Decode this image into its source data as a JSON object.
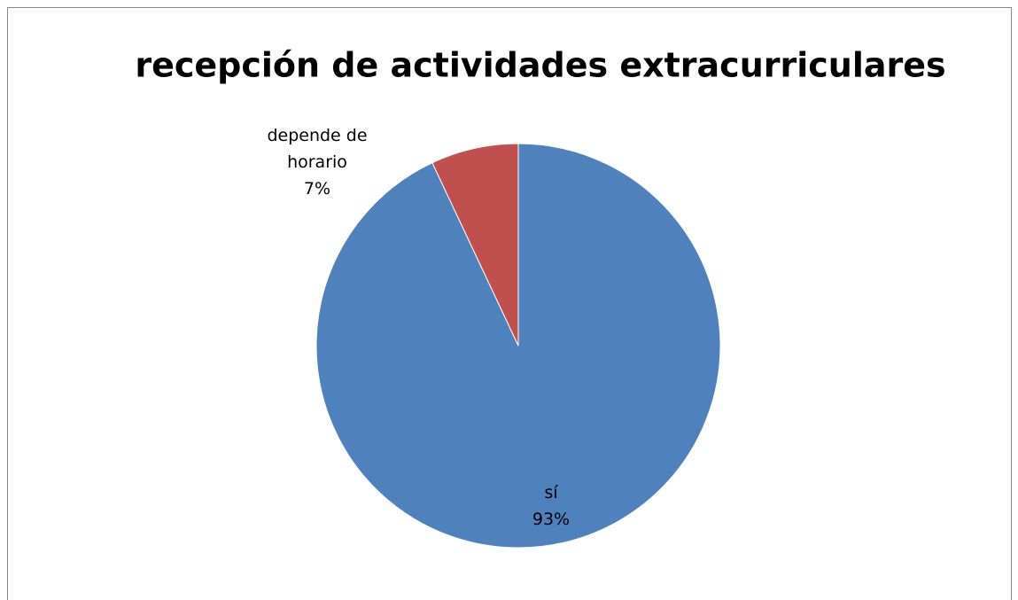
{
  "chart_data": {
    "type": "pie",
    "title": "recepción de actividades extracurriculares",
    "categories": [
      "sí",
      "depende de horario"
    ],
    "values": [
      93,
      7
    ],
    "value_labels": [
      "93%",
      "7%"
    ],
    "colors": [
      "#4f81bd",
      "#c0504d"
    ]
  }
}
